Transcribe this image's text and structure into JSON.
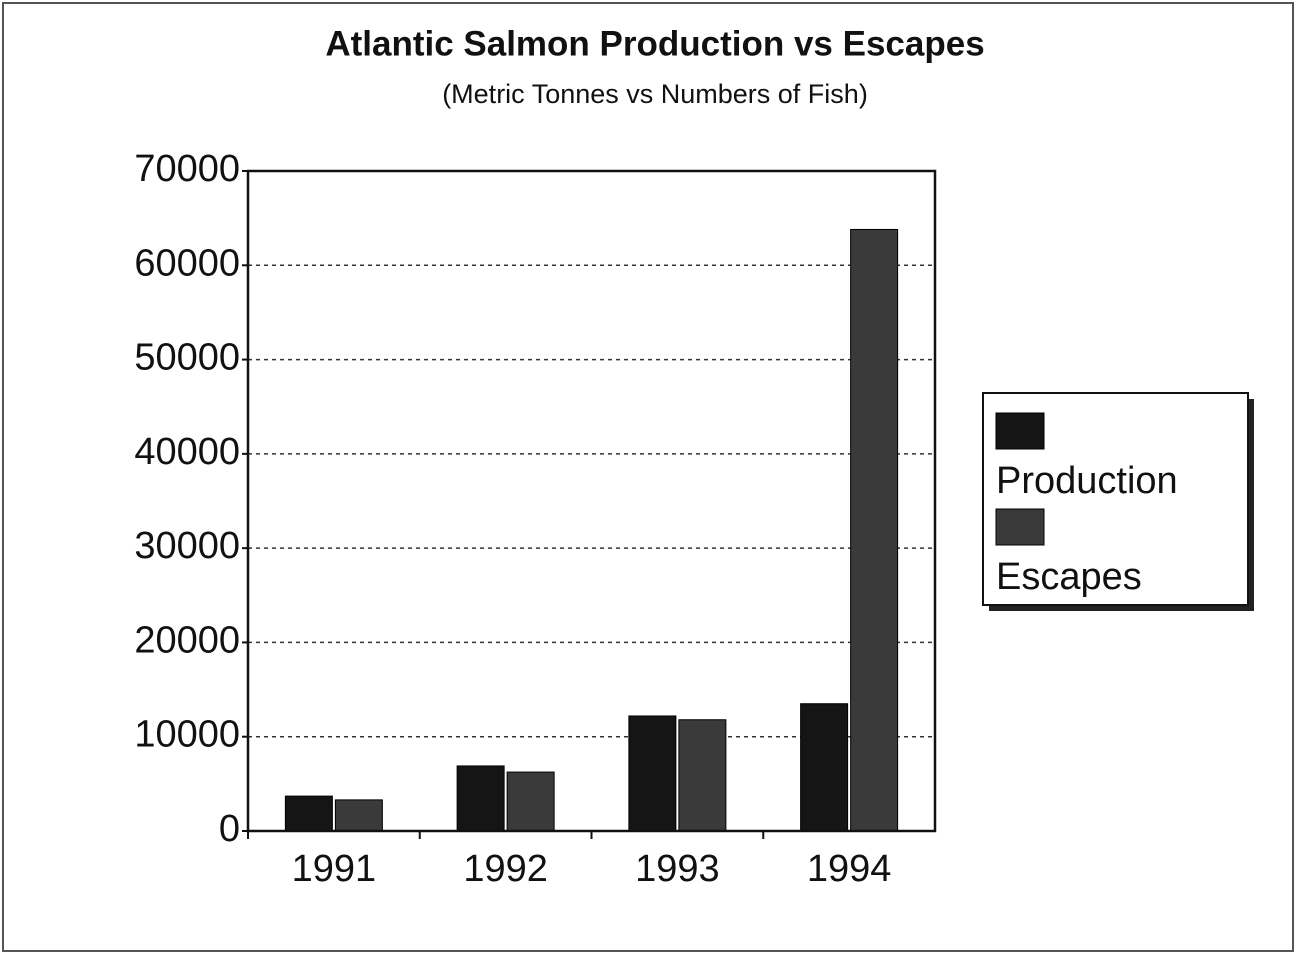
{
  "chart_data": {
    "type": "bar",
    "title": "Atlantic Salmon Production vs Escapes",
    "subtitle": "(Metric Tonnes vs Numbers of Fish)",
    "categories": [
      "1991",
      "1992",
      "1993",
      "1994"
    ],
    "series": [
      {
        "name": "Production",
        "color": "#151515",
        "values": [
          3700,
          6900,
          12200,
          13500
        ]
      },
      {
        "name": "Escapes",
        "color": "#3a3a3a",
        "values": [
          3300,
          6250,
          11800,
          63800
        ]
      }
    ],
    "ylim": [
      0,
      70000
    ],
    "yticks": [
      0,
      10000,
      20000,
      30000,
      40000,
      50000,
      60000,
      70000
    ],
    "grid": true,
    "legend": "right"
  }
}
